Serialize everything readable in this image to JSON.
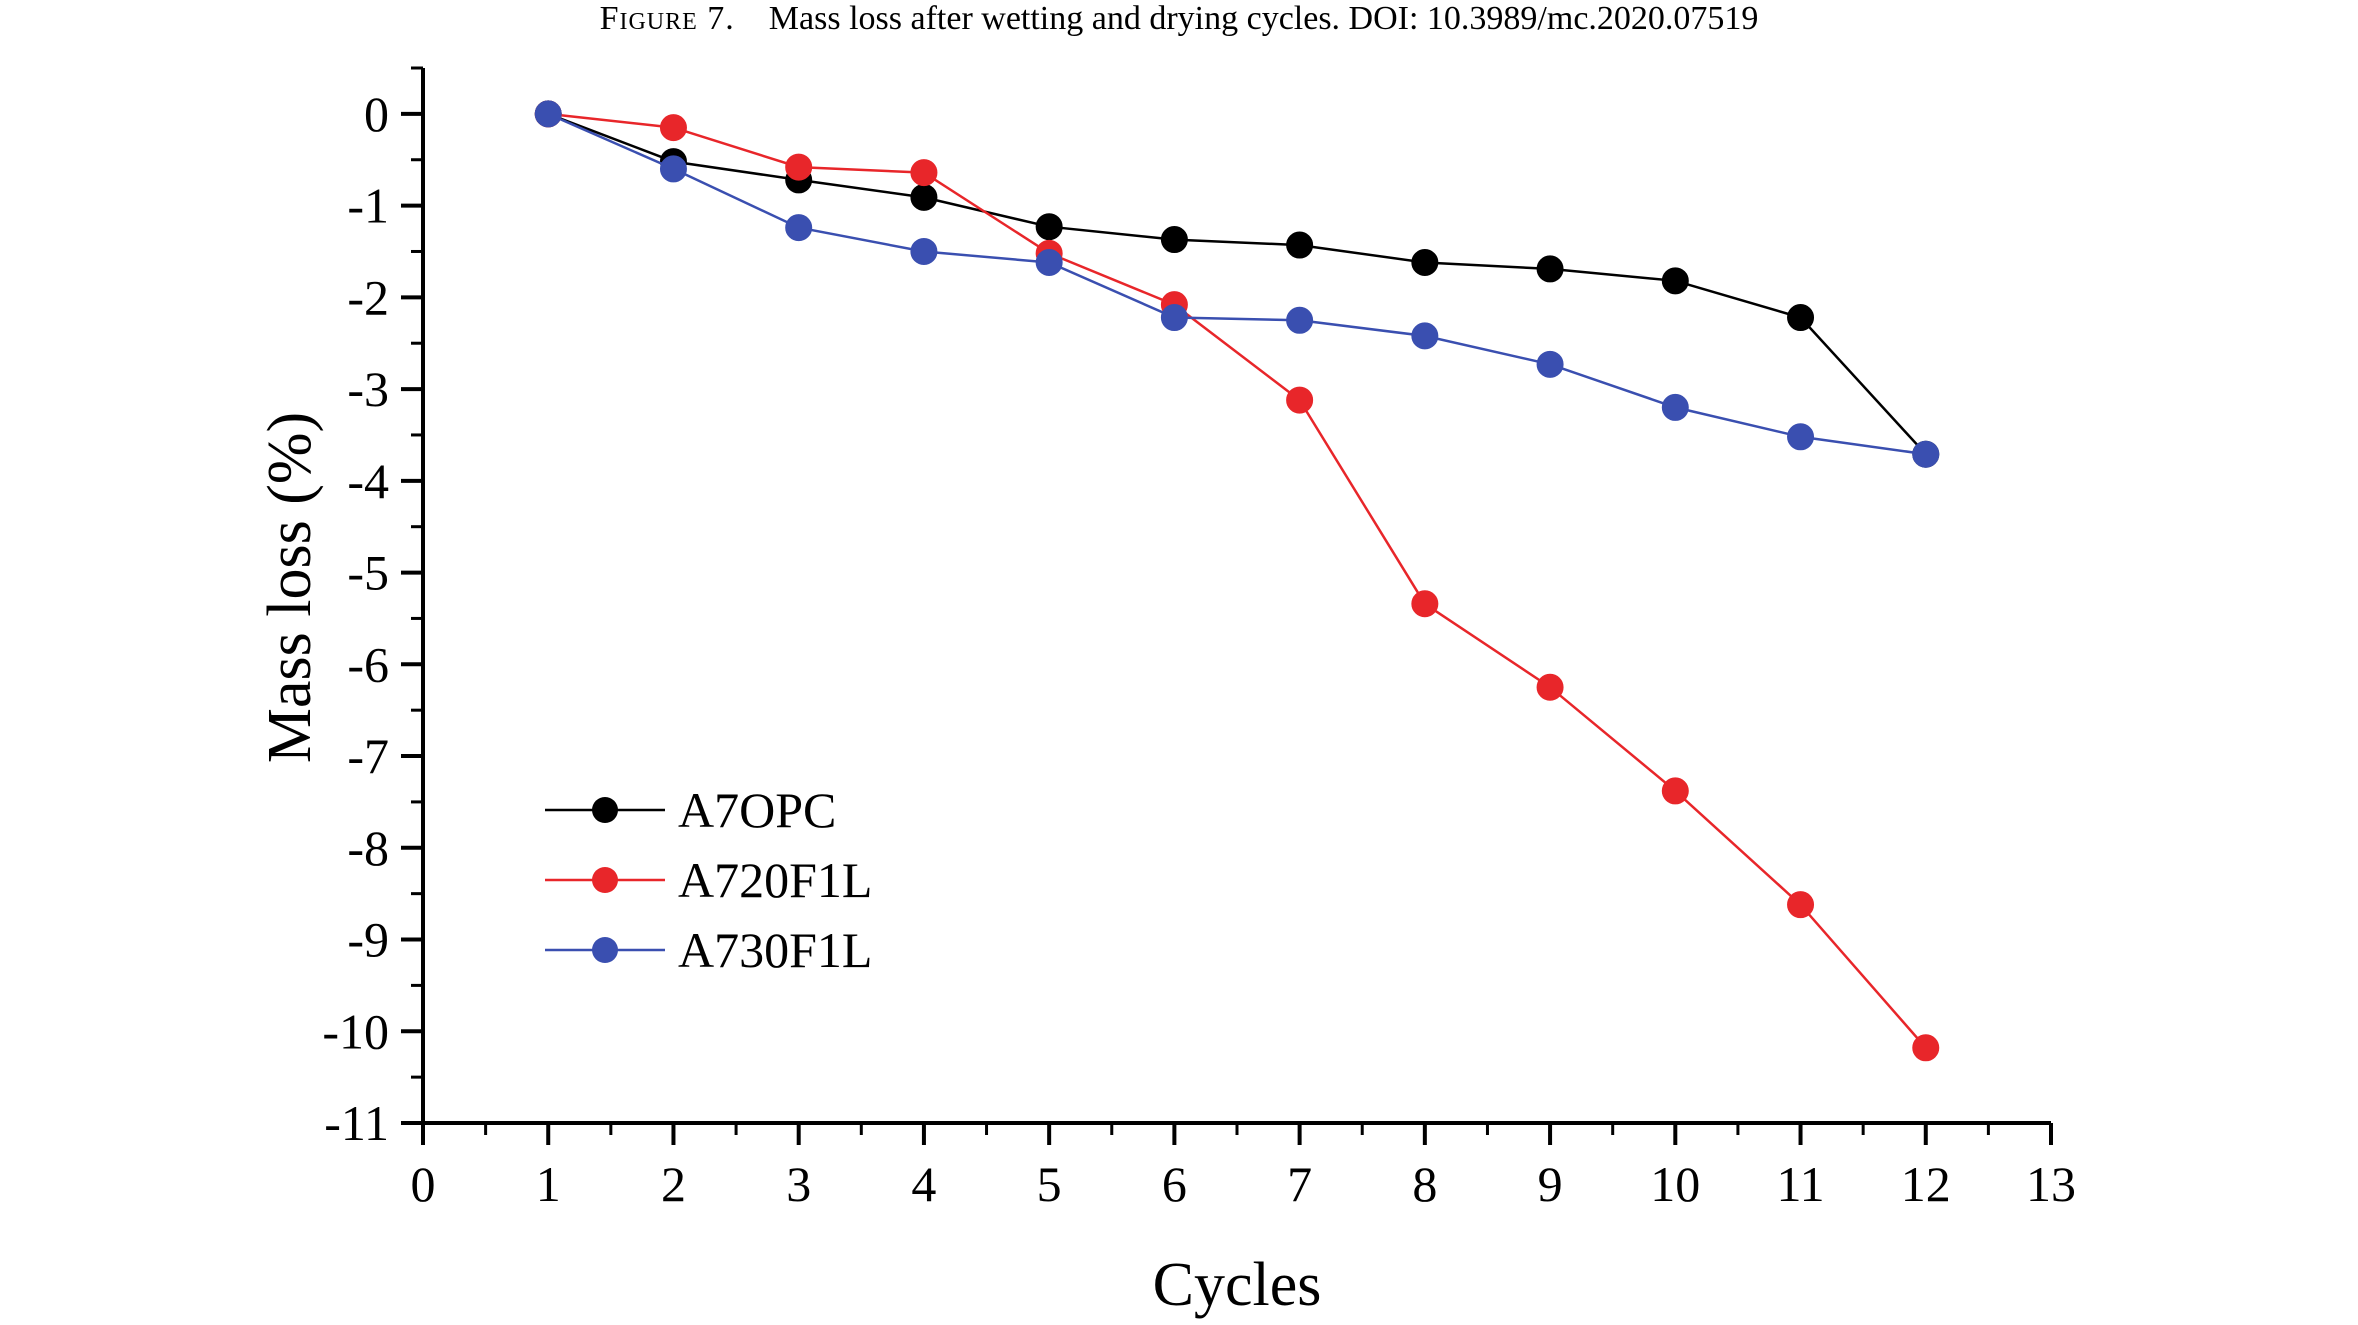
{
  "caption": {
    "label": "Figure 7.",
    "text": "Mass loss after wetting and drying cycles. DOI: 10.3989/mc.2020.07519"
  },
  "chart_data": {
    "type": "line",
    "title": "",
    "xlabel": "Cycles",
    "ylabel": "Mass loss (%)",
    "xlim": [
      0,
      13
    ],
    "ylim": [
      -11,
      0.5
    ],
    "x_ticks": [
      "0",
      "1",
      "2",
      "3",
      "4",
      "5",
      "6",
      "7",
      "8",
      "9",
      "10",
      "11",
      "12",
      "13"
    ],
    "y_ticks": [
      "0",
      "-1",
      "-2",
      "-3",
      "-4",
      "-5",
      "-6",
      "-7",
      "-8",
      "-9",
      "-10",
      "-11"
    ],
    "grid": false,
    "legend_position": "bottom-left",
    "x": [
      1,
      2,
      3,
      4,
      5,
      6,
      7,
      8,
      9,
      10,
      11,
      12
    ],
    "series": [
      {
        "name": "A7OPC",
        "color": "#000000",
        "values": [
          0,
          -0.52,
          -0.72,
          -0.91,
          -1.23,
          -1.37,
          -1.43,
          -1.62,
          -1.69,
          -1.82,
          -2.22,
          -3.71
        ]
      },
      {
        "name": "A720F1L",
        "color": "#e8262a",
        "values": [
          0,
          -0.15,
          -0.58,
          -0.64,
          -1.52,
          -2.08,
          -3.12,
          -5.34,
          -6.25,
          -7.38,
          -8.62,
          -10.18
        ]
      },
      {
        "name": "A730F1L",
        "color": "#3a4fb0",
        "values": [
          0,
          -0.6,
          -1.24,
          -1.5,
          -1.62,
          -2.22,
          -2.25,
          -2.42,
          -2.73,
          -3.2,
          -3.52,
          -3.71
        ]
      }
    ]
  }
}
